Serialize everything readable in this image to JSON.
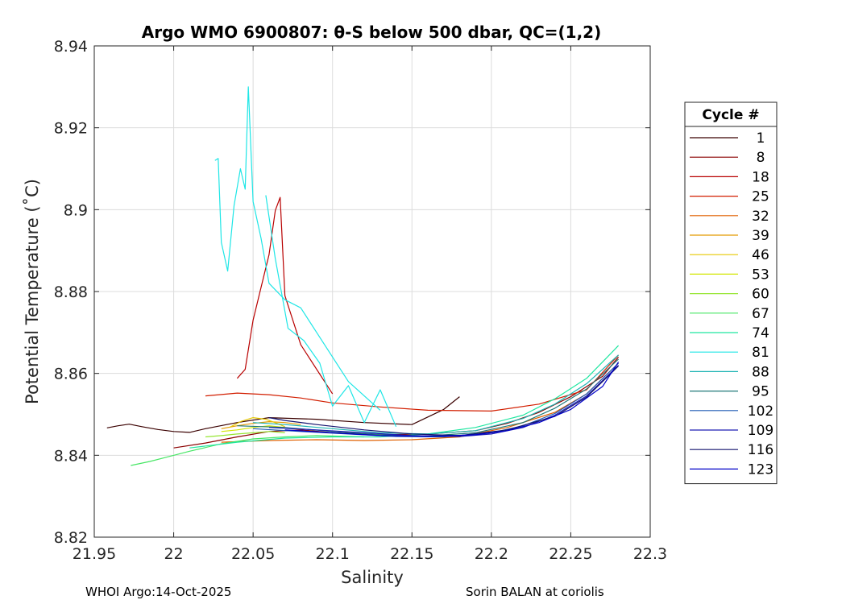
{
  "chart_data": {
    "type": "line",
    "title": "Argo WMO 6900807: θ-S below 500 dbar,  QC=(1,2)",
    "xlabel": "Salinity",
    "ylabel": "Potential Temperature (˚C)",
    "xlim": [
      21.95,
      22.3
    ],
    "ylim": [
      8.82,
      8.94
    ],
    "xticks": [
      "21.95",
      "22",
      "22.05",
      "22.1",
      "22.15",
      "22.2",
      "22.25",
      "22.3"
    ],
    "yticks": [
      "8.82",
      "8.84",
      "8.86",
      "8.88",
      "8.9",
      "8.92",
      "8.94"
    ],
    "grid": true,
    "legend": {
      "title": "Cycle #",
      "position": "right",
      "entries": [
        {
          "label": "1",
          "color": "#3a0000"
        },
        {
          "label": "8",
          "color": "#8b0000"
        },
        {
          "label": "18",
          "color": "#b80000"
        },
        {
          "label": "25",
          "color": "#d21e00"
        },
        {
          "label": "32",
          "color": "#e06000"
        },
        {
          "label": "39",
          "color": "#e49a00"
        },
        {
          "label": "46",
          "color": "#e6c800"
        },
        {
          "label": "53",
          "color": "#d2e600"
        },
        {
          "label": "60",
          "color": "#96e632"
        },
        {
          "label": "67",
          "color": "#46e664"
        },
        {
          "label": "74",
          "color": "#1ee6a0"
        },
        {
          "label": "81",
          "color": "#1ee6e6"
        },
        {
          "label": "88",
          "color": "#1eb4b4"
        },
        {
          "label": "95",
          "color": "#1e7878"
        },
        {
          "label": "102",
          "color": "#1e5ab4"
        },
        {
          "label": "109",
          "color": "#1e1eb4"
        },
        {
          "label": "116",
          "color": "#14146e"
        },
        {
          "label": "123",
          "color": "#0000c8"
        }
      ]
    },
    "series": [
      {
        "color": "#3a0000",
        "x": [
          21.958,
          21.965,
          21.972,
          21.98,
          21.99,
          22.0,
          22.01,
          22.02,
          22.04,
          22.06,
          22.09,
          22.12,
          22.15,
          22.17,
          22.18
        ],
        "y": [
          8.8467,
          8.8472,
          8.8476,
          8.847,
          8.8463,
          8.8458,
          8.8456,
          8.8465,
          8.848,
          8.8492,
          8.8488,
          8.848,
          8.8475,
          8.8512,
          8.8543
        ]
      },
      {
        "color": "#8b0000",
        "x": [
          22.0,
          22.02,
          22.04,
          22.06,
          22.08,
          22.1,
          22.13,
          22.16,
          22.19,
          22.21,
          22.23,
          22.25,
          22.27,
          22.28
        ],
        "y": [
          8.8418,
          8.843,
          8.8445,
          8.8458,
          8.8462,
          8.8455,
          8.845,
          8.8452,
          8.846,
          8.8478,
          8.8505,
          8.8543,
          8.8593,
          8.864
        ]
      },
      {
        "color": "#b80000",
        "x": [
          22.04,
          22.045,
          22.05,
          22.055,
          22.06,
          22.064,
          22.067,
          22.07,
          22.08,
          22.1
        ],
        "y": [
          8.8588,
          8.861,
          8.873,
          8.881,
          8.889,
          8.8998,
          8.903,
          8.879,
          8.867,
          8.855
        ]
      },
      {
        "color": "#d21e00",
        "x": [
          22.02,
          22.04,
          22.06,
          22.08,
          22.1,
          22.13,
          22.16,
          22.2,
          22.23,
          22.26,
          22.28
        ],
        "y": [
          8.8545,
          8.8552,
          8.8548,
          8.854,
          8.8528,
          8.8518,
          8.851,
          8.8508,
          8.8525,
          8.856,
          8.8645
        ]
      },
      {
        "color": "#e06000",
        "x": [
          22.03,
          22.06,
          22.09,
          22.12,
          22.15,
          22.18,
          22.21,
          22.24,
          22.26,
          22.28
        ],
        "y": [
          8.8432,
          8.8436,
          8.8438,
          8.8436,
          8.8438,
          8.8445,
          8.8468,
          8.8505,
          8.855,
          8.8625
        ]
      },
      {
        "color": "#e49a00",
        "x": [
          22.03,
          22.04,
          22.05,
          22.06,
          22.07,
          22.08
        ],
        "y": [
          8.8465,
          8.8472,
          8.8478,
          8.8482,
          8.848,
          8.8475
        ]
      },
      {
        "color": "#e6c800",
        "x": [
          22.035,
          22.042,
          22.05,
          22.058,
          22.065,
          22.07
        ],
        "y": [
          8.8468,
          8.8482,
          8.8492,
          8.8488,
          8.8478,
          8.847
        ]
      },
      {
        "color": "#d2e600",
        "x": [
          22.03,
          22.04,
          22.05,
          22.06,
          22.07
        ],
        "y": [
          8.8458,
          8.8462,
          8.8468,
          8.8472,
          8.8468
        ]
      },
      {
        "color": "#96e632",
        "x": [
          22.02,
          22.03,
          22.04,
          22.05,
          22.06,
          22.07
        ],
        "y": [
          8.8445,
          8.8448,
          8.8452,
          8.8455,
          8.8458,
          8.8455
        ]
      },
      {
        "color": "#46e664",
        "x": [
          21.973,
          21.985,
          21.995,
          22.01,
          22.03,
          22.05,
          22.07,
          22.09,
          22.12
        ],
        "y": [
          8.8375,
          8.8385,
          8.8395,
          8.841,
          8.8428,
          8.844,
          8.8445,
          8.8448,
          8.8445
        ]
      },
      {
        "color": "#1ee6a0",
        "x": [
          22.01,
          22.04,
          22.07,
          22.1,
          22.13,
          22.16,
          22.19,
          22.22,
          22.24,
          22.26,
          22.28
        ],
        "y": [
          8.8418,
          8.8432,
          8.8442,
          8.8445,
          8.8445,
          8.8452,
          8.8468,
          8.8498,
          8.8538,
          8.8588,
          8.8668
        ]
      },
      {
        "color": "#1ee6e6",
        "x": [
          22.026,
          22.028,
          22.03,
          22.034,
          22.038,
          22.042,
          22.045,
          22.047,
          22.05,
          22.055,
          22.06,
          22.07,
          22.08,
          22.09,
          22.11,
          22.13
        ],
        "y": [
          8.912,
          8.9125,
          8.892,
          8.885,
          8.901,
          8.91,
          8.905,
          8.93,
          8.902,
          8.893,
          8.882,
          8.878,
          8.876,
          8.87,
          8.858,
          8.851
        ]
      },
      {
        "color": "#1ee6e6",
        "x": [
          22.058,
          22.064,
          22.072,
          22.082,
          22.092,
          22.1,
          22.11,
          22.12,
          22.13,
          22.14
        ],
        "y": [
          8.9035,
          8.888,
          8.871,
          8.868,
          8.8625,
          8.852,
          8.857,
          8.848,
          8.856,
          8.847
        ]
      },
      {
        "color": "#1eb4b4",
        "x": [
          22.05,
          22.07,
          22.1,
          22.13,
          22.16,
          22.19,
          22.22,
          22.24,
          22.26,
          22.28
        ],
        "y": [
          8.848,
          8.8475,
          8.8465,
          8.8455,
          8.8452,
          8.846,
          8.849,
          8.8525,
          8.8575,
          8.8645
        ]
      },
      {
        "color": "#1e7878",
        "x": [
          22.04,
          22.07,
          22.1,
          22.13,
          22.16,
          22.19,
          22.22,
          22.24,
          22.26,
          22.28
        ],
        "y": [
          8.8472,
          8.8468,
          8.8458,
          8.845,
          8.8447,
          8.8455,
          8.848,
          8.8515,
          8.8562,
          8.8635
        ]
      },
      {
        "color": "#1e5ab4",
        "x": [
          22.05,
          22.08,
          22.11,
          22.14,
          22.17,
          22.2,
          22.22,
          22.24,
          22.26,
          22.28
        ],
        "y": [
          8.8465,
          8.8458,
          8.8452,
          8.8446,
          8.8445,
          8.8455,
          8.8472,
          8.8502,
          8.855,
          8.8625
        ]
      },
      {
        "color": "#1e1eb4",
        "x": [
          22.06,
          22.09,
          22.12,
          22.15,
          22.18,
          22.2,
          22.22,
          22.24,
          22.26,
          22.28
        ],
        "y": [
          8.8468,
          8.8462,
          8.8455,
          8.8448,
          8.8446,
          8.8452,
          8.8468,
          8.8498,
          8.8545,
          8.862
        ]
      },
      {
        "color": "#14146e",
        "x": [
          22.06,
          22.07,
          22.09,
          22.12,
          22.15,
          22.18,
          22.21,
          22.24,
          22.26,
          22.28
        ],
        "y": [
          8.8492,
          8.8485,
          8.8475,
          8.8462,
          8.8452,
          8.8448,
          8.8462,
          8.8495,
          8.8542,
          8.8618
        ]
      },
      {
        "color": "#0000c8",
        "x": [
          22.07,
          22.1,
          22.13,
          22.16,
          22.19,
          22.21,
          22.23,
          22.25,
          22.27,
          22.28
        ],
        "y": [
          8.8462,
          8.8455,
          8.8448,
          8.8446,
          8.845,
          8.846,
          8.848,
          8.8512,
          8.8568,
          8.8628
        ]
      }
    ],
    "footer_left": "WHOI Argo:14-Oct-2025",
    "footer_right": "Sorin BALAN at coriolis"
  }
}
